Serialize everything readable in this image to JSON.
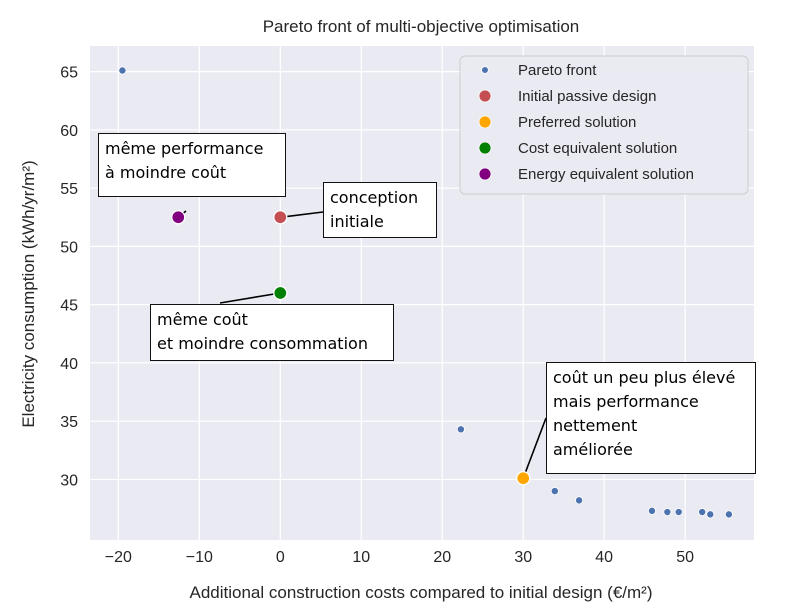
{
  "chart_data": {
    "type": "scatter",
    "title": "Pareto front of multi-objective optimisation",
    "xlabel": "Additional construction costs compared to initial design (€/m²)",
    "ylabel": "Electricity consumption (kWh/yr/m²)",
    "xlim": [
      -23.5,
      58.5
    ],
    "ylim": [
      24.8,
      67.2
    ],
    "xticks": [
      -20,
      -10,
      0,
      10,
      20,
      30,
      40,
      50
    ],
    "xtick_labels": [
      "−20",
      "−10",
      "0",
      "10",
      "20",
      "30",
      "40",
      "50"
    ],
    "yticks": [
      30,
      35,
      40,
      45,
      50,
      55,
      60,
      65
    ],
    "ytick_labels": [
      "30",
      "35",
      "40",
      "45",
      "50",
      "55",
      "60",
      "65"
    ],
    "grid": true,
    "legend_position": "top-right",
    "series": [
      {
        "name": "Pareto front",
        "color": "#4c72b0",
        "size": "small",
        "points": [
          [
            -19.5,
            65.1
          ],
          [
            22.3,
            34.3
          ],
          [
            33.9,
            29.0
          ],
          [
            36.9,
            28.2
          ],
          [
            45.9,
            27.3
          ],
          [
            47.8,
            27.2
          ],
          [
            49.2,
            27.2
          ],
          [
            52.1,
            27.2
          ],
          [
            53.1,
            27.0
          ],
          [
            55.4,
            27.0
          ]
        ]
      },
      {
        "name": "Initial passive design",
        "color": "#c44e52",
        "size": "large",
        "points": [
          [
            0,
            52.5
          ]
        ]
      },
      {
        "name": "Preferred solution",
        "color": "#ffa500",
        "size": "large",
        "points": [
          [
            30.0,
            30.1
          ]
        ]
      },
      {
        "name": "Cost equivalent solution",
        "color": "#008000",
        "size": "large",
        "points": [
          [
            0,
            46.0
          ]
        ]
      },
      {
        "name": "Energy equivalent solution",
        "color": "#800080",
        "size": "large",
        "points": [
          [
            -12.6,
            52.5
          ]
        ]
      }
    ]
  },
  "annotations": [
    {
      "id": "ann-same-performance",
      "text": "même performance\nà moindre coût"
    },
    {
      "id": "ann-initial-design",
      "text": "conception\ninitiale"
    },
    {
      "id": "ann-same-cost",
      "text": "même coût\net moindre consommation"
    },
    {
      "id": "ann-preferred",
      "text": "coût un peu plus élevé\nmais performance\nnettement\naméliorée"
    }
  ],
  "colors": {
    "plot_background": "#eaeaf2",
    "grid": "#ffffff",
    "text": "#262626"
  }
}
